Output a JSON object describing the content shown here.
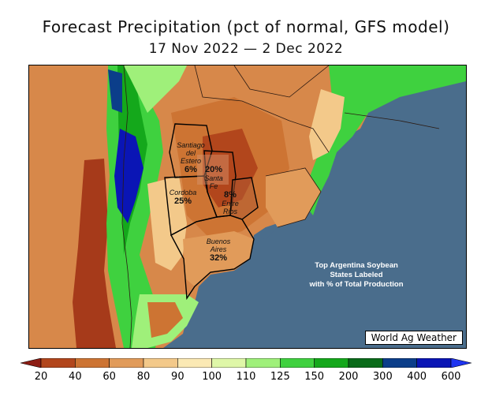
{
  "header": {
    "title": "Forecast Precipitation (pct of normal, GFS model)",
    "subtitle": "17 Nov 2022 — 2 Dec 2022"
  },
  "map": {
    "region": "Argentina, Uruguay, southern Brazil",
    "ocean_color": "#4a6d8c",
    "credit": "World Ag Weather",
    "note_lines": [
      "Top Argentina Soybean",
      "States Labeled",
      "with % of Total Production"
    ],
    "states": [
      {
        "name_lines": [
          "Santiago",
          "del",
          "Estero"
        ],
        "pct": "6%"
      },
      {
        "name_lines": [
          "Santa",
          "Fe"
        ],
        "pct": "20%"
      },
      {
        "name_lines": [
          "Cordoba"
        ],
        "pct": "25%"
      },
      {
        "name_lines": [
          "Entre",
          "Rios"
        ],
        "pct": "8%"
      },
      {
        "name_lines": [
          "Buenos",
          "Aires"
        ],
        "pct": "32%"
      }
    ]
  },
  "legend": {
    "ticks": [
      "20",
      "40",
      "60",
      "80",
      "90",
      "100",
      "110",
      "125",
      "150",
      "200",
      "300",
      "400",
      "600"
    ],
    "colors": [
      "#8c1d14",
      "#b2461c",
      "#cd7433",
      "#e19b5a",
      "#f3c98a",
      "#fbe9b4",
      "#dff7a8",
      "#9ff07a",
      "#3fd13f",
      "#14a81b",
      "#0a6b19",
      "#0b3e8a",
      "#0a15b5",
      "#1e34f0"
    ]
  }
}
